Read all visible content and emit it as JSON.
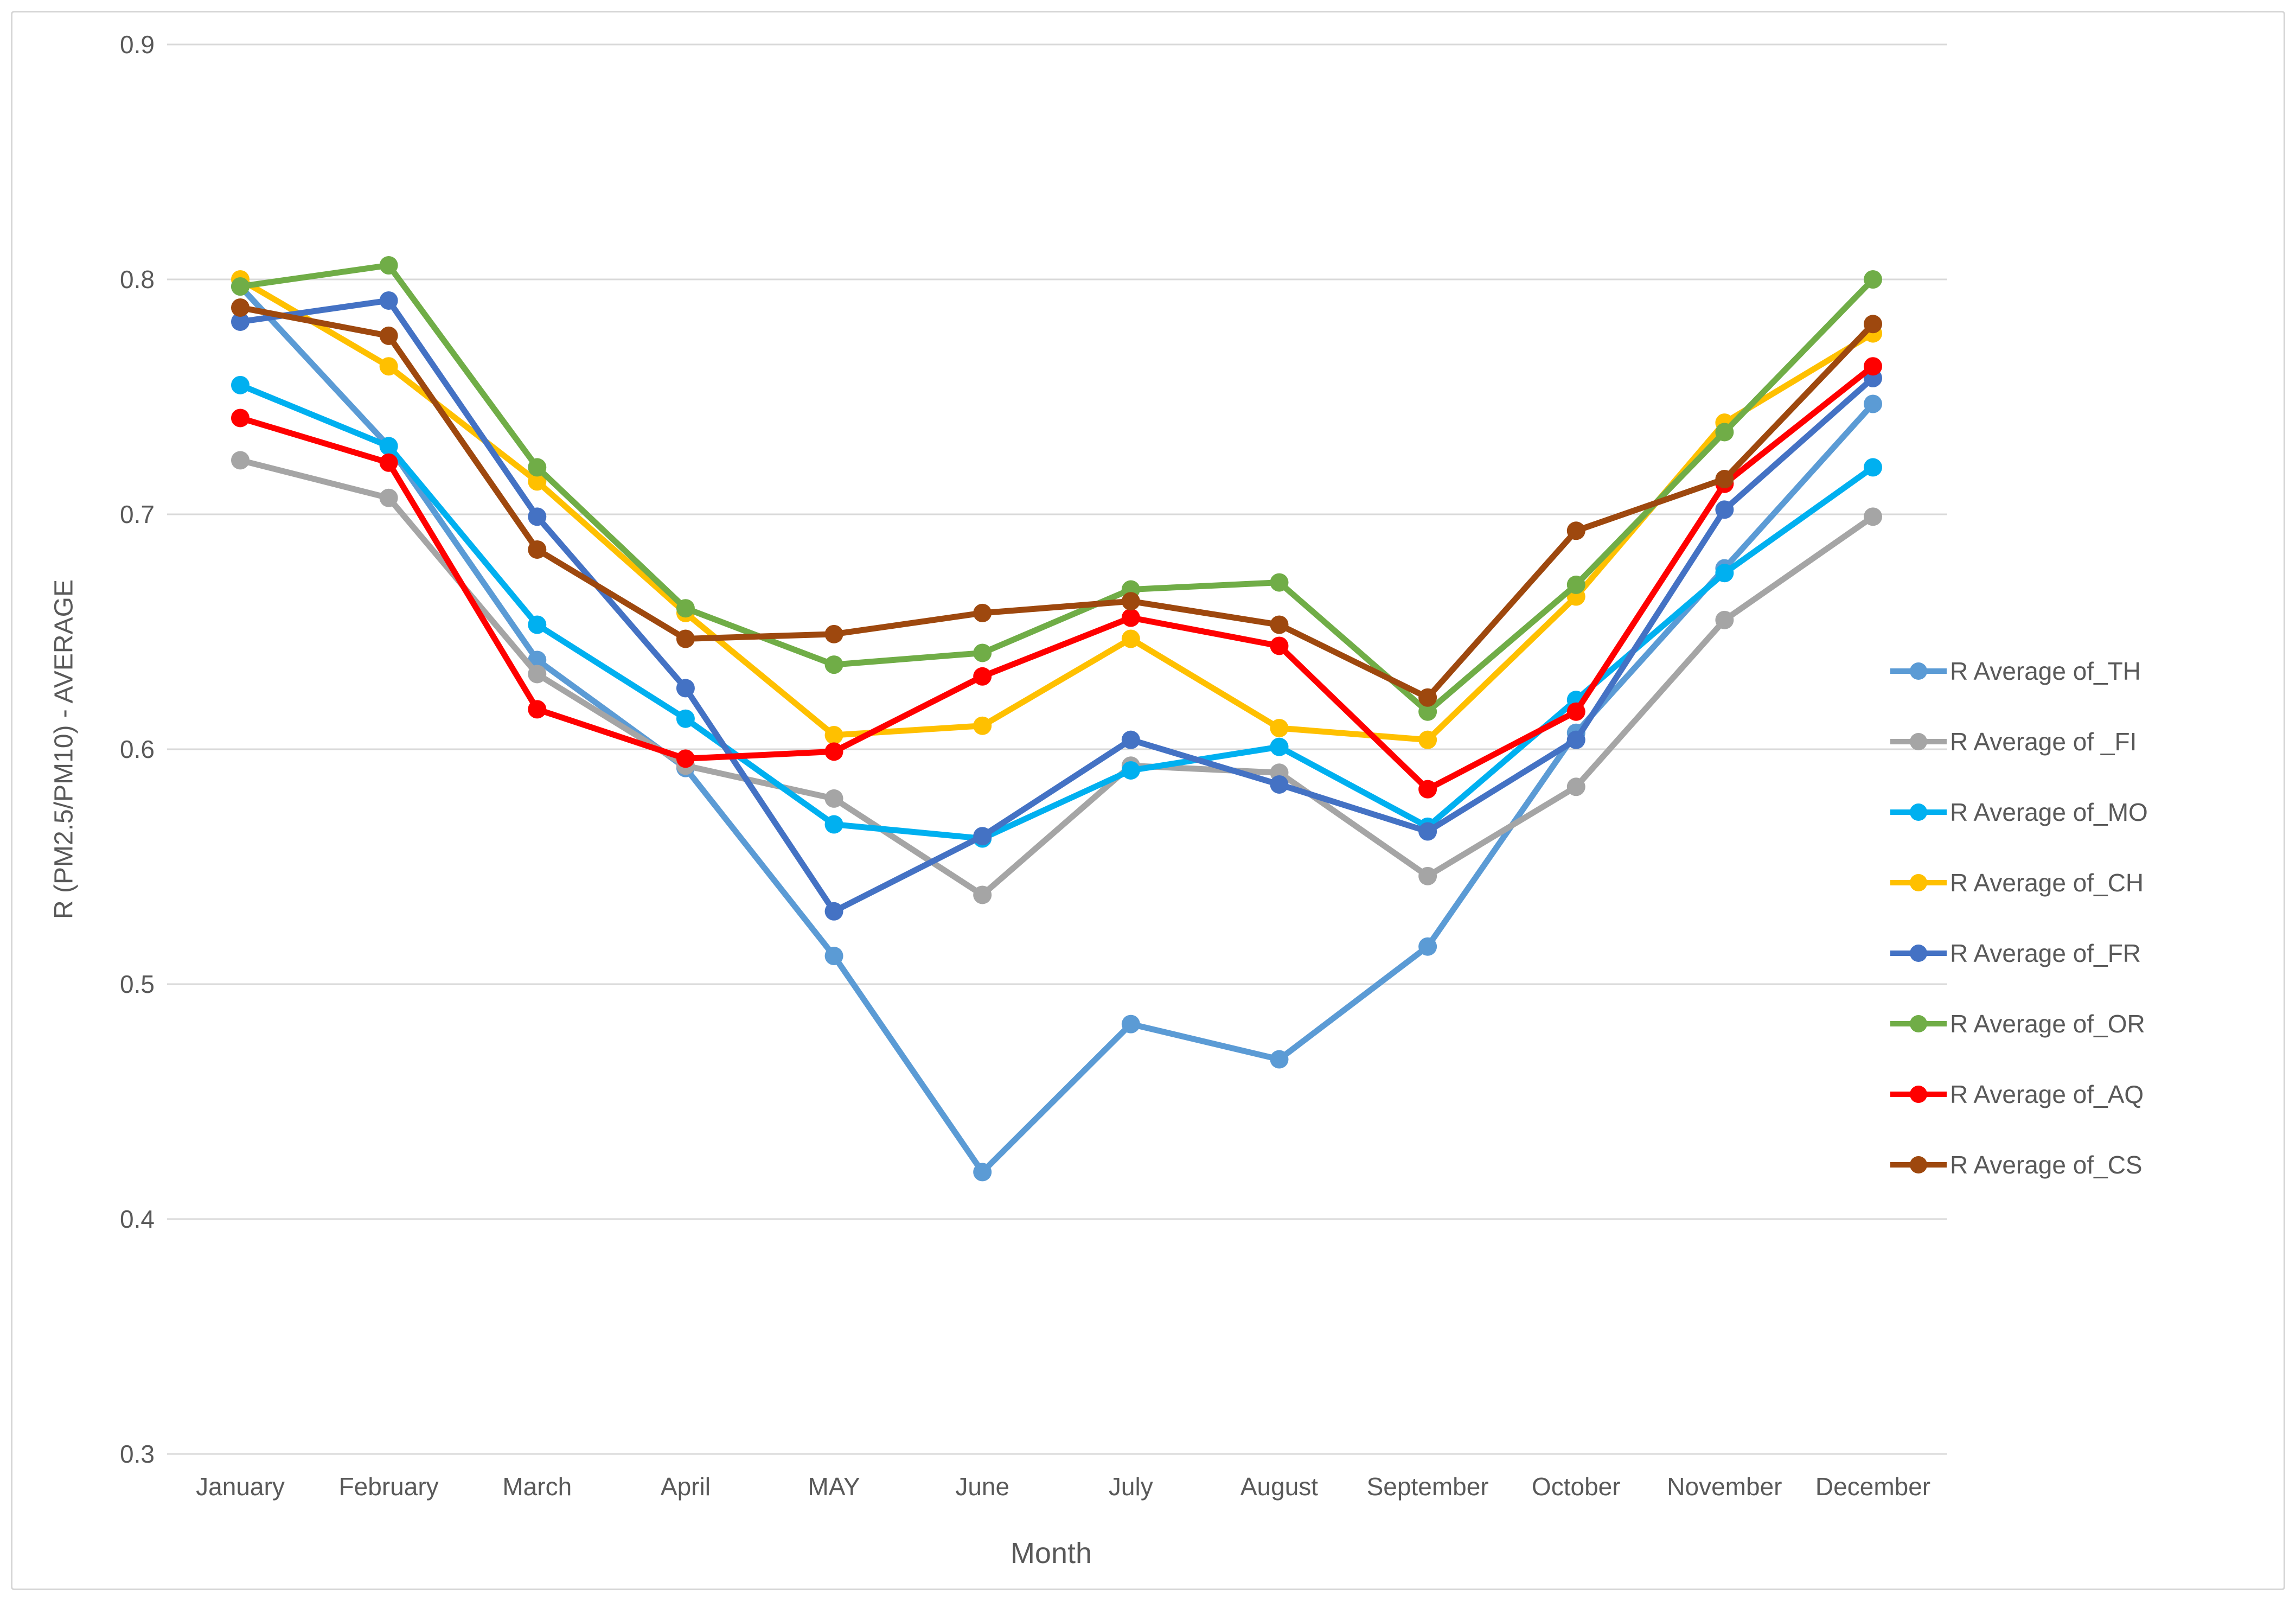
{
  "chart_data": {
    "type": "line",
    "title": "",
    "xlabel": "Month",
    "ylabel": "R (PM2.5/PM10) - AVERAGE",
    "categories": [
      "January",
      "February",
      "March",
      "April",
      "MAY",
      "June",
      "July",
      "August",
      "September",
      "October",
      "November",
      "December"
    ],
    "ylim": [
      0.3,
      0.9
    ],
    "yticks": [
      0.9,
      0.8,
      0.7,
      0.6,
      0.5,
      0.4,
      0.3
    ],
    "grid": true,
    "legend_position": "right",
    "marker": "circle",
    "grid_color": "#D9D9D9",
    "text_color": "#595959",
    "series": [
      {
        "name": "R Average of_TH",
        "color": "#5B9BD5",
        "values": [
          0.797,
          0.729,
          0.638,
          0.592,
          0.512,
          0.42,
          0.483,
          0.468,
          0.516,
          0.607,
          0.677,
          0.747
        ]
      },
      {
        "name": "R Average of _FI",
        "color": "#A5A5A5",
        "values": [
          0.723,
          0.707,
          0.632,
          0.593,
          0.579,
          0.538,
          0.593,
          0.59,
          0.546,
          0.584,
          0.655,
          0.699
        ]
      },
      {
        "name": "R Average of_MO",
        "color": "#00B0F0",
        "values": [
          0.755,
          0.729,
          0.653,
          0.613,
          0.568,
          0.562,
          0.591,
          0.601,
          0.567,
          0.621,
          0.675,
          0.72
        ]
      },
      {
        "name": "R Average of_CH",
        "color": "#FFC000",
        "values": [
          0.8,
          0.763,
          0.714,
          0.658,
          0.606,
          0.61,
          0.647,
          0.609,
          0.604,
          0.665,
          0.739,
          0.777
        ]
      },
      {
        "name": "R Average of_FR",
        "color": "#4472C4",
        "values": [
          0.782,
          0.791,
          0.699,
          0.626,
          0.531,
          0.563,
          0.604,
          0.585,
          0.565,
          0.604,
          0.702,
          0.758
        ]
      },
      {
        "name": "R Average of_OR",
        "color": "#70AD47",
        "values": [
          0.797,
          0.806,
          0.72,
          0.66,
          0.636,
          0.641,
          0.668,
          0.671,
          0.616,
          0.67,
          0.735,
          0.8
        ]
      },
      {
        "name": "R Average of_AQ",
        "color": "#FF0000",
        "values": [
          0.741,
          0.722,
          0.617,
          0.596,
          0.599,
          0.631,
          0.656,
          0.644,
          0.583,
          0.616,
          0.713,
          0.763
        ]
      },
      {
        "name": "R Average of_CS",
        "color": "#9E480E",
        "values": [
          0.788,
          0.776,
          0.685,
          0.647,
          0.649,
          0.658,
          0.663,
          0.653,
          0.622,
          0.693,
          0.715,
          0.781
        ]
      }
    ]
  }
}
